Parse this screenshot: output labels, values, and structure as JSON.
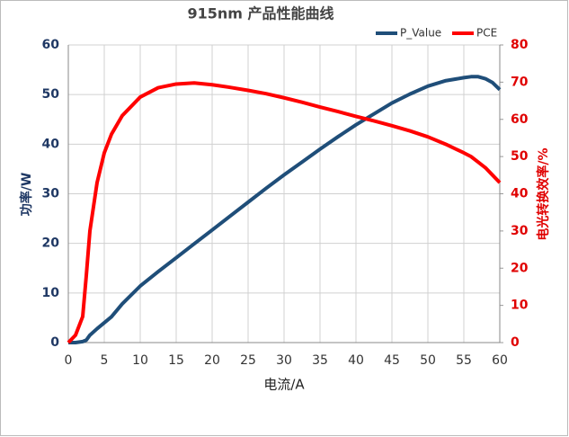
{
  "chart_data": {
    "type": "line",
    "title": "915nm 产品性能曲线",
    "xlabel": "电流/A",
    "ylabel": "功率/W",
    "y2label": "电光转换效率/%",
    "x": [
      0,
      1,
      2,
      2.5,
      3,
      4,
      5,
      6,
      7.5,
      10,
      12.5,
      15,
      17.5,
      20,
      22.5,
      25,
      27.5,
      30,
      32.5,
      35,
      37.5,
      40,
      42.5,
      45,
      47.5,
      50,
      52.5,
      55,
      56,
      57,
      58,
      59,
      60
    ],
    "series": [
      {
        "name": "P_Value",
        "color": "#1f4e79",
        "values": [
          0,
          0,
          0.2,
          0.5,
          1.5,
          2.8,
          4,
          5.2,
          7.8,
          11.4,
          14.3,
          17.1,
          19.9,
          22.7,
          25.5,
          28.3,
          31.1,
          33.8,
          36.4,
          39,
          41.5,
          43.9,
          46.1,
          48.3,
          50.1,
          51.7,
          52.8,
          53.4,
          53.6,
          53.6,
          53.2,
          52.4,
          51
        ]
      },
      {
        "name": "PCE",
        "color": "#ff0000",
        "axis": "y2",
        "values": [
          0,
          2,
          7,
          18,
          30,
          43,
          51,
          56,
          61,
          66,
          68.5,
          69.5,
          69.8,
          69.3,
          68.6,
          67.8,
          66.9,
          65.8,
          64.6,
          63.3,
          62.1,
          60.8,
          59.6,
          58.3,
          56.9,
          55.3,
          53.3,
          51,
          50,
          48.5,
          47,
          45,
          43
        ]
      }
    ],
    "xlim": [
      0,
      60
    ],
    "xticks": [
      0,
      5,
      10,
      15,
      20,
      25,
      30,
      35,
      40,
      45,
      50,
      55,
      60
    ],
    "ylim": [
      0,
      60
    ],
    "yticks": [
      0,
      10,
      20,
      30,
      40,
      50,
      60
    ],
    "y2lim": [
      0,
      80
    ],
    "y2ticks": [
      0,
      10,
      20,
      30,
      40,
      50,
      60,
      70,
      80
    ],
    "grid": true,
    "legend": "top-right"
  }
}
